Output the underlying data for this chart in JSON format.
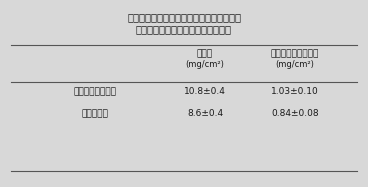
{
  "title_line1": "表１　高濃度炭酸ガス施用樹の比葉重及び",
  "title_line2": "　　葉中クロロフィル量（ブドウ）",
  "col1_header_line1": "比葉重",
  "col1_header_line2": "(mg/cm²)",
  "col2_header_line1": "葉中クロロフィル量",
  "col2_header_line2": "(mg/cm²)",
  "row1_label": "高濃度炭酸ガス樹",
  "row2_label": "対　照　樹",
  "row1_col1": "10.8±0.4",
  "row1_col2": "1.03±0.10",
  "row2_col1": "8.6±0.4",
  "row2_col2": "0.84±0.08",
  "bg_color": "#d8d8d8",
  "text_color": "#1a1a1a"
}
